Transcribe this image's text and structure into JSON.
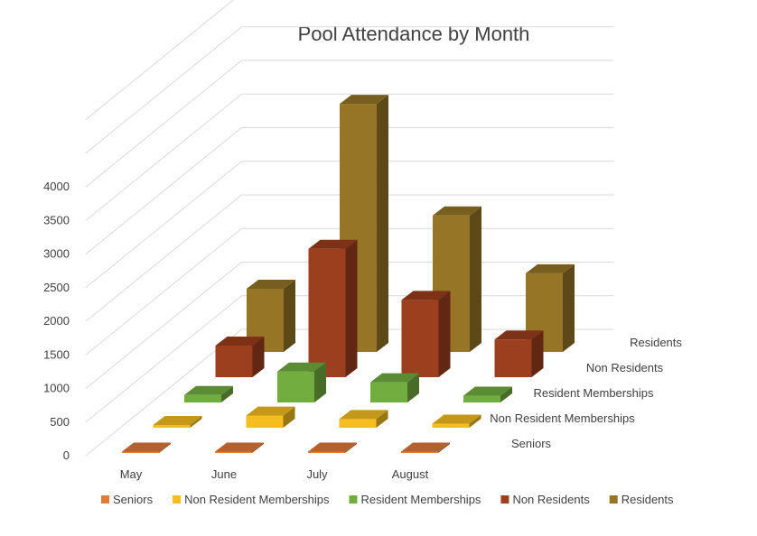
{
  "chart_data": {
    "type": "bar",
    "title": "Pool Attendance by Month",
    "categories": [
      "May",
      "June",
      "July",
      "August"
    ],
    "ylim": [
      0,
      4000
    ],
    "yticks": [
      "0",
      "500",
      "1000",
      "1500",
      "2000",
      "2500",
      "3000",
      "3500",
      "4000"
    ],
    "grid": true,
    "legend_position": "bottom",
    "series": [
      {
        "name": "Seniors",
        "color": "#E07B39",
        "values": [
          20,
          20,
          20,
          20
        ]
      },
      {
        "name": "Non Resident Memberships",
        "color": "#F5BE1E",
        "values": [
          40,
          180,
          130,
          60
        ]
      },
      {
        "name": "Resident Memberships",
        "color": "#72AE3F",
        "values": [
          110,
          460,
          300,
          100
        ]
      },
      {
        "name": "Non Residents",
        "color": "#9C3F1E",
        "values": [
          470,
          1910,
          1150,
          560
        ]
      },
      {
        "name": "Residents",
        "color": "#967526",
        "values": [
          940,
          3690,
          2030,
          1170
        ]
      }
    ]
  }
}
